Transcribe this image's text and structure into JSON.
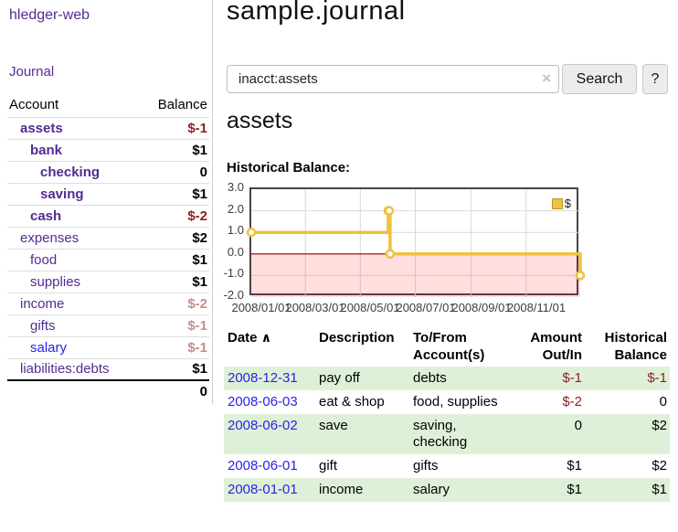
{
  "app_title": "hledger-web",
  "colors": {
    "purple": "#542a93",
    "link_blue": "#2525e8",
    "neg_strong": "#8e1f1f",
    "neg_soft": "#c98c8c",
    "row_green": "#dff0d8",
    "gold": "#edc240"
  },
  "sidebar": {
    "journal_link": "Journal",
    "account_header": "Account",
    "balance_header": "Balance",
    "accounts": [
      {
        "name": "assets",
        "balance": "$-1",
        "depth": 1,
        "bold": true,
        "balance_style": "negative-strong"
      },
      {
        "name": "bank",
        "balance": "$1",
        "depth": 2,
        "bold": true,
        "balance_style": "normal"
      },
      {
        "name": "checking",
        "balance": "0",
        "depth": 3,
        "bold": true,
        "balance_style": "normal"
      },
      {
        "name": "saving",
        "balance": "$1",
        "depth": 3,
        "bold": true,
        "balance_style": "normal"
      },
      {
        "name": "cash",
        "balance": "$-2",
        "depth": 2,
        "bold": true,
        "balance_style": "negative-strong"
      },
      {
        "name": "expenses",
        "balance": "$2",
        "depth": 1,
        "bold": false,
        "balance_style": "normal"
      },
      {
        "name": "food",
        "balance": "$1",
        "depth": 2,
        "bold": false,
        "balance_style": "normal"
      },
      {
        "name": "supplies",
        "balance": "$1",
        "depth": 2,
        "bold": false,
        "balance_style": "normal"
      },
      {
        "name": "income",
        "balance": "$-2",
        "depth": 1,
        "bold": false,
        "balance_style": "negative-soft"
      },
      {
        "name": "gifts",
        "balance": "$-1",
        "depth": 2,
        "bold": false,
        "balance_style": "negative-soft"
      },
      {
        "name": "salary",
        "balance": "$-1",
        "depth": 2,
        "bold": false,
        "balance_style": "negative-soft",
        "link_style": "unvisited"
      },
      {
        "name": "liabilities:debts",
        "balance": "$1",
        "depth": 1,
        "bold": false,
        "balance_style": "normal"
      }
    ],
    "total": "0"
  },
  "main": {
    "title": "sample.journal",
    "search": {
      "value": "inacct:assets",
      "clear_icon": "×",
      "search_button": "Search",
      "help_button": "?"
    },
    "account_heading": "assets",
    "chart_label": "Historical Balance:",
    "register": {
      "headers": {
        "date": "Date",
        "sort_asc_icon": "∧",
        "description": "Description",
        "accounts": "To/From\nAccount(s)",
        "amount": "Amount\nOut/In",
        "balance": "Historical\nBalance"
      },
      "rows": [
        {
          "date": "2008-12-31",
          "description": "pay off",
          "accounts": "debts",
          "amount": "$-1",
          "amount_negative": true,
          "balance": "$-1",
          "balance_negative": true
        },
        {
          "date": "2008-06-03",
          "description": "eat & shop",
          "accounts": "food, supplies",
          "amount": "$-2",
          "amount_negative": true,
          "balance": "0",
          "balance_negative": false
        },
        {
          "date": "2008-06-02",
          "description": "save",
          "accounts": "saving,\nchecking",
          "amount": "0",
          "amount_negative": false,
          "balance": "$2",
          "balance_negative": false
        },
        {
          "date": "2008-06-01",
          "description": "gift",
          "accounts": "gifts",
          "amount": "$1",
          "amount_negative": false,
          "balance": "$2",
          "balance_negative": false
        },
        {
          "date": "2008-01-01",
          "description": "income",
          "accounts": "salary",
          "amount": "$1",
          "amount_negative": false,
          "balance": "$1",
          "balance_negative": false
        }
      ]
    }
  },
  "chart_data": {
    "type": "line",
    "title": "Historical Balance:",
    "series": [
      {
        "name": "$",
        "color": "#edc240",
        "step": true,
        "points": [
          {
            "date": "2008-01-01",
            "value": 1
          },
          {
            "date": "2008-06-01",
            "value": 2
          },
          {
            "date": "2008-06-02",
            "value": 2
          },
          {
            "date": "2008-06-03",
            "value": 0
          },
          {
            "date": "2008-12-31",
            "value": -1
          }
        ]
      }
    ],
    "x_range": [
      "2008-01-01",
      "2008-12-31"
    ],
    "ylim": [
      -2,
      3
    ],
    "x_tick_labels": [
      "2008/01/01",
      "2008/03/01",
      "2008/05/01",
      "2008/07/01",
      "2008/09/01",
      "2008/11/01"
    ],
    "y_tick_labels": [
      "3.0",
      "2.0",
      "1.0",
      "0.0",
      "-1.0",
      "-2.0"
    ],
    "grid": true,
    "legend_position": "top-right",
    "negative_region_fill": "rgba(255,0,0,0.13)",
    "zero_line_color": "#8b0000"
  }
}
